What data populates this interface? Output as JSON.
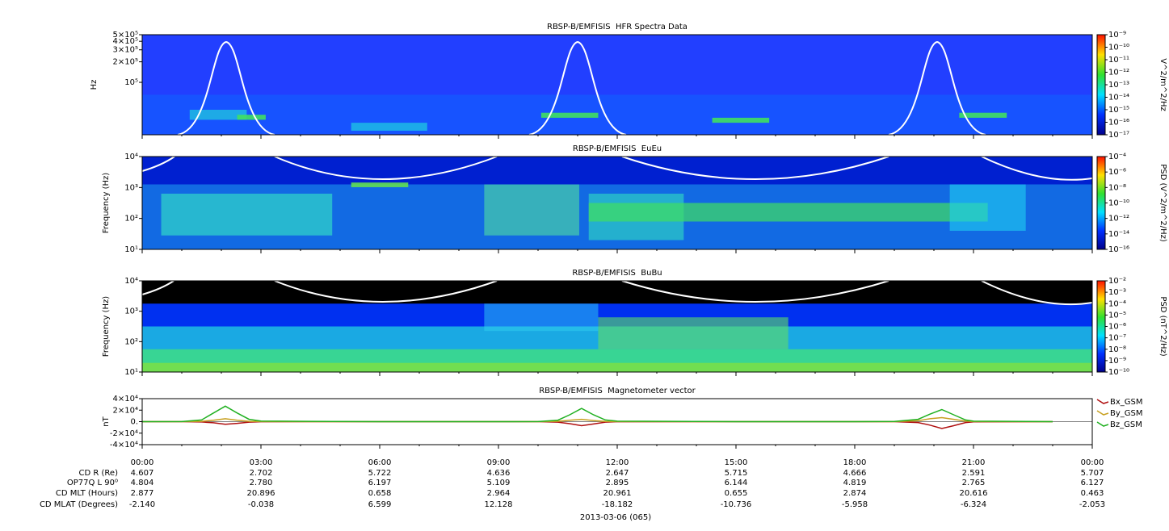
{
  "chart_data": [
    {
      "type": "spectrogram",
      "title": "RBSP-B/EMFISIS  HFR Spectra Data",
      "ylabel": "Hz",
      "log_y": true,
      "ylim": [
        17000,
        500000
      ],
      "yticks": [
        {
          "value": 500000,
          "label": "5×10⁵"
        },
        {
          "value": 400000,
          "label": "4×10⁵"
        },
        {
          "value": 300000,
          "label": "3×10⁵"
        },
        {
          "value": 200000,
          "label": "2×10⁵"
        },
        {
          "value": 100000,
          "label": "10⁵"
        }
      ],
      "colorbar_label": "V^2/m^2/Hz",
      "clim": [
        1e-17,
        1e-09
      ],
      "cticks": [
        {
          "value": 1e-09,
          "label": "10⁻⁹"
        },
        {
          "value": 1e-10,
          "label": "10⁻¹⁰"
        },
        {
          "value": 1e-11,
          "label": "10⁻¹¹"
        },
        {
          "value": 1e-12,
          "label": "10⁻¹²"
        },
        {
          "value": 1e-13,
          "label": "10⁻¹³"
        },
        {
          "value": 1e-14,
          "label": "10⁻¹⁴"
        },
        {
          "value": 1e-15,
          "label": "10⁻¹⁵"
        },
        {
          "value": 1e-16,
          "label": "10⁻¹⁶"
        },
        {
          "value": 1e-17,
          "label": "10⁻¹⁷"
        }
      ]
    },
    {
      "type": "spectrogram",
      "title": "RBSP-B/EMFISIS  EuEu",
      "ylabel": "Frequency (Hz)",
      "log_y": true,
      "ylim": [
        10,
        10000
      ],
      "yticks": [
        {
          "value": 10000,
          "label": "10⁴"
        },
        {
          "value": 1000,
          "label": "10³"
        },
        {
          "value": 100,
          "label": "10²"
        },
        {
          "value": 10,
          "label": "10¹"
        }
      ],
      "colorbar_label": "PSD (V^2/m^2/Hz)",
      "clim": [
        1e-16,
        0.0001
      ],
      "cticks": [
        {
          "value": 0.0001,
          "label": "10⁻⁴"
        },
        {
          "value": 1e-06,
          "label": "10⁻⁶"
        },
        {
          "value": 1e-08,
          "label": "10⁻⁸"
        },
        {
          "value": 1e-10,
          "label": "10⁻¹⁰"
        },
        {
          "value": 1e-12,
          "label": "10⁻¹²"
        },
        {
          "value": 1e-14,
          "label": "10⁻¹⁴"
        },
        {
          "value": 1e-16,
          "label": "10⁻¹⁶"
        }
      ]
    },
    {
      "type": "spectrogram",
      "title": "RBSP-B/EMFISIS  BuBu",
      "ylabel": "Frequency (Hz)",
      "log_y": true,
      "ylim": [
        10,
        10000
      ],
      "yticks": [
        {
          "value": 10000,
          "label": "10⁴"
        },
        {
          "value": 1000,
          "label": "10³"
        },
        {
          "value": 100,
          "label": "10²"
        },
        {
          "value": 10,
          "label": "10¹"
        }
      ],
      "colorbar_label": "PSD (nT^2/Hz)",
      "clim": [
        1e-10,
        0.01
      ],
      "cticks": [
        {
          "value": 0.01,
          "label": "10⁻²"
        },
        {
          "value": 0.001,
          "label": "10⁻³"
        },
        {
          "value": 0.0001,
          "label": "10⁻⁴"
        },
        {
          "value": 1e-05,
          "label": "10⁻⁵"
        },
        {
          "value": 1e-06,
          "label": "10⁻⁶"
        },
        {
          "value": 1e-07,
          "label": "10⁻⁷"
        },
        {
          "value": 1e-08,
          "label": "10⁻⁸"
        },
        {
          "value": 1e-09,
          "label": "10⁻⁹"
        },
        {
          "value": 1e-10,
          "label": "10⁻¹⁰"
        }
      ]
    },
    {
      "type": "line",
      "title": "RBSP-B/EMFISIS  Magnetometer vector",
      "ylabel": "nT",
      "xlim": [
        0,
        24
      ],
      "xticks": [
        {
          "value": 0,
          "label": "00:00"
        },
        {
          "value": 3,
          "label": "03:00"
        },
        {
          "value": 6,
          "label": "06:00"
        },
        {
          "value": 9,
          "label": "09:00"
        },
        {
          "value": 12,
          "label": "12:00"
        },
        {
          "value": 15,
          "label": "15:00"
        },
        {
          "value": 18,
          "label": "18:00"
        },
        {
          "value": 21,
          "label": "21:00"
        },
        {
          "value": 24,
          "label": "00:00"
        }
      ],
      "ylim": [
        -40000,
        40000
      ],
      "yticks": [
        {
          "value": 40000,
          "label": "4×10⁴"
        },
        {
          "value": 20000,
          "label": "2×10⁴"
        },
        {
          "value": 0,
          "label": "0."
        },
        {
          "value": -20000,
          "label": "-2×10⁴"
        },
        {
          "value": -40000,
          "label": "-4×10⁴"
        }
      ],
      "x": [
        0,
        1,
        1.5,
        1.8,
        2.1,
        2.4,
        2.7,
        3,
        6,
        9,
        10,
        10.5,
        10.8,
        11.1,
        11.4,
        11.7,
        12,
        15,
        18,
        19,
        19.6,
        19.9,
        20.2,
        20.5,
        20.8,
        21,
        23
      ],
      "series": [
        {
          "name": "Bx_GSM",
          "color": "#b01010",
          "values": [
            0,
            0,
            -500,
            -2000,
            -4500,
            -3000,
            -800,
            -200,
            0,
            0,
            0,
            -800,
            -3500,
            -7000,
            -4000,
            -800,
            -200,
            0,
            0,
            0,
            -1500,
            -6000,
            -12000,
            -7000,
            -1500,
            -300,
            0
          ]
        },
        {
          "name": "By_GSM",
          "color": "#c8a020",
          "values": [
            0,
            0,
            500,
            2500,
            5000,
            2500,
            500,
            100,
            0,
            0,
            0,
            500,
            2500,
            4000,
            2000,
            400,
            100,
            0,
            0,
            0,
            1500,
            5000,
            7000,
            4000,
            800,
            200,
            0
          ]
        },
        {
          "name": "Bz_GSM",
          "color": "#20b020",
          "values": [
            0,
            200,
            3000,
            15000,
            27000,
            15000,
            4000,
            1000,
            0,
            0,
            200,
            2500,
            12000,
            23000,
            12000,
            3000,
            800,
            0,
            0,
            300,
            4000,
            13000,
            21000,
            12000,
            3000,
            800,
            0
          ]
        }
      ]
    }
  ],
  "ephemeris": {
    "rows": [
      {
        "label": "CD R (Re)",
        "values": [
          "4.607",
          "2.702",
          "5.722",
          "4.636",
          "2.647",
          "5.715",
          "4.666",
          "2.591",
          "5.707"
        ]
      },
      {
        "label": "OP77Q L 90⁰",
        "values": [
          "4.804",
          "2.780",
          "6.197",
          "5.109",
          "2.895",
          "6.144",
          "4.819",
          "2.765",
          "6.127"
        ]
      },
      {
        "label": "CD MLT (Hours)",
        "values": [
          "2.877",
          "20.896",
          "0.658",
          "2.964",
          "20.961",
          "0.655",
          "2.874",
          "20.616",
          "0.463"
        ]
      },
      {
        "label": "CD MLAT (Degrees)",
        "values": [
          "-2.140",
          "-0.038",
          "6.599",
          "12.128",
          "-18.182",
          "-10.736",
          "-5.958",
          "-6.324",
          "-2.053"
        ]
      }
    ],
    "date": "2013-03-06 (065)"
  }
}
